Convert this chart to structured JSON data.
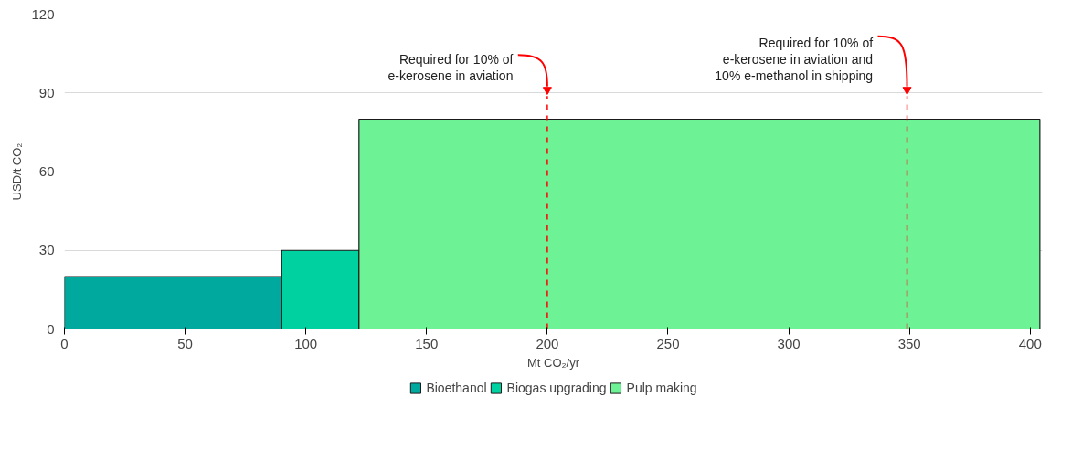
{
  "chart_data": {
    "type": "histogram",
    "xlabel": "Mt CO₂/yr",
    "ylabel": "USD/t CO₂",
    "bins": [
      0,
      90,
      122,
      404
    ],
    "series": [
      {
        "name": "Bioethanol",
        "color": "#00a99d",
        "values": [
          20,
          null,
          null
        ]
      },
      {
        "name": "Biogas upgrading",
        "color": "#00d1a0",
        "values": [
          null,
          30,
          null
        ]
      },
      {
        "name": "Pulp making",
        "color": "#6ef296",
        "values": [
          null,
          null,
          80
        ]
      }
    ],
    "xlim": [
      0,
      405
    ],
    "ylim": [
      0,
      120
    ],
    "xticks": [
      0,
      50,
      100,
      150,
      200,
      250,
      300,
      350,
      400
    ],
    "yticks": [
      0,
      30,
      60,
      90,
      120
    ],
    "ref_lines": [
      {
        "axis": "x",
        "value": 200,
        "label": "Required for 10% of\ne-kerosene in aviation",
        "color": "#ff0000",
        "line_style": "dashed"
      },
      {
        "axis": "x",
        "value": 349,
        "label": "Required for 10% of\ne-kerosene in aviation and\n10% e-methanol in shipping",
        "color": "#ff0000",
        "line_style": "dashed"
      }
    ],
    "grid": "y",
    "legend": "bottom"
  }
}
